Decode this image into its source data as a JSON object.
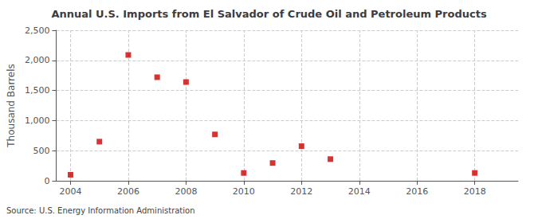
{
  "chart_data": {
    "type": "scatter",
    "title": "Annual U.S. Imports from El Salvador of Crude Oil and Petroleum Products",
    "ylabel": "Thousand Barrels",
    "annotation": "Source: U.S. Energy Information Administration",
    "x": [
      2004,
      2005,
      2006,
      2007,
      2008,
      2009,
      2010,
      2011,
      2012,
      2013,
      2018
    ],
    "values": [
      100,
      650,
      2090,
      1720,
      1640,
      770,
      130,
      295,
      575,
      360,
      130
    ],
    "color": "#cc0000",
    "marker": "square",
    "xlim": [
      2003.5,
      2019.5
    ],
    "xticks": [
      2004,
      2006,
      2008,
      2010,
      2012,
      2014,
      2016,
      2018
    ],
    "ylim": [
      0,
      2500
    ],
    "yticks": [
      0,
      500,
      {
        "value": 1000,
        "label": "1,000"
      },
      {
        "value": 1500,
        "label": "1,500"
      },
      {
        "value": 2000,
        "label": "2,000"
      },
      {
        "value": 2500,
        "label": "2,500"
      }
    ],
    "grid": true
  }
}
